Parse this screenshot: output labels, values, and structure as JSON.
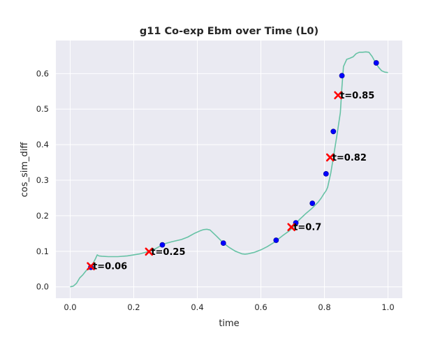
{
  "chart_data": {
    "type": "line",
    "title": "g11 Co-exp Ebm over Time (L0)",
    "xlabel": "time",
    "ylabel": "cos_sim_diff",
    "xlim": [
      -0.045,
      1.045
    ],
    "ylim": [
      -0.032,
      0.693
    ],
    "xticks": [
      0.0,
      0.2,
      0.4,
      0.6,
      0.8,
      1.0
    ],
    "xtick_labels": [
      "0.0",
      "0.2",
      "0.4",
      "0.6",
      "0.8",
      "1.0"
    ],
    "yticks": [
      0.0,
      0.1,
      0.2,
      0.3,
      0.4,
      0.5,
      0.6
    ],
    "ytick_labels": [
      "0.0",
      "0.1",
      "0.2",
      "0.3",
      "0.4",
      "0.5",
      "0.6"
    ],
    "grid": true,
    "colors": {
      "background": "#eaeaf2",
      "grid": "#ffffff",
      "line": "#66c2a5",
      "points": "#0000ff",
      "markers": "#ff0000",
      "text": "#262626"
    },
    "series": [
      {
        "kind": "line",
        "x": [
          0.0,
          0.01,
          0.02,
          0.03,
          0.04,
          0.05,
          0.06,
          0.07,
          0.08,
          0.085,
          0.09,
          0.1,
          0.12,
          0.15,
          0.18,
          0.2,
          0.22,
          0.25,
          0.27,
          0.29,
          0.3,
          0.32,
          0.35,
          0.37,
          0.39,
          0.41,
          0.42,
          0.43,
          0.44,
          0.46,
          0.48,
          0.5,
          0.52,
          0.54,
          0.55,
          0.56,
          0.58,
          0.6,
          0.62,
          0.64,
          0.65,
          0.67,
          0.69,
          0.7,
          0.71,
          0.72,
          0.74,
          0.76,
          0.78,
          0.79,
          0.8,
          0.805,
          0.81,
          0.82,
          0.83,
          0.84,
          0.85,
          0.855,
          0.86,
          0.87,
          0.88,
          0.89,
          0.9,
          0.91,
          0.92,
          0.93,
          0.94,
          0.95,
          0.96,
          0.97,
          0.98,
          0.99,
          1.0
        ],
        "y": [
          0.0,
          0.002,
          0.01,
          0.025,
          0.034,
          0.045,
          0.055,
          0.062,
          0.08,
          0.09,
          0.087,
          0.086,
          0.085,
          0.085,
          0.087,
          0.09,
          0.093,
          0.1,
          0.108,
          0.118,
          0.122,
          0.127,
          0.133,
          0.14,
          0.15,
          0.158,
          0.161,
          0.162,
          0.16,
          0.143,
          0.125,
          0.111,
          0.1,
          0.093,
          0.092,
          0.093,
          0.097,
          0.104,
          0.113,
          0.124,
          0.131,
          0.145,
          0.158,
          0.166,
          0.177,
          0.188,
          0.205,
          0.22,
          0.238,
          0.25,
          0.264,
          0.27,
          0.28,
          0.32,
          0.375,
          0.43,
          0.49,
          0.56,
          0.62,
          0.64,
          0.643,
          0.647,
          0.656,
          0.66,
          0.66,
          0.661,
          0.66,
          0.648,
          0.632,
          0.618,
          0.608,
          0.604,
          0.603
        ]
      },
      {
        "kind": "scatter",
        "x": [
          0.065,
          0.29,
          0.482,
          0.648,
          0.71,
          0.762,
          0.805,
          0.828,
          0.855,
          0.963
        ],
        "y": [
          0.055,
          0.118,
          0.123,
          0.131,
          0.18,
          0.235,
          0.318,
          0.437,
          0.594,
          0.63
        ]
      }
    ],
    "annotations": [
      {
        "x": 0.065,
        "y": 0.058,
        "label": "t=0.06"
      },
      {
        "x": 0.248,
        "y": 0.099,
        "label": "t=0.25"
      },
      {
        "x": 0.696,
        "y": 0.168,
        "label": "t=0.7"
      },
      {
        "x": 0.818,
        "y": 0.364,
        "label": "t=0.82"
      },
      {
        "x": 0.843,
        "y": 0.539,
        "label": "t=0.85"
      }
    ]
  }
}
